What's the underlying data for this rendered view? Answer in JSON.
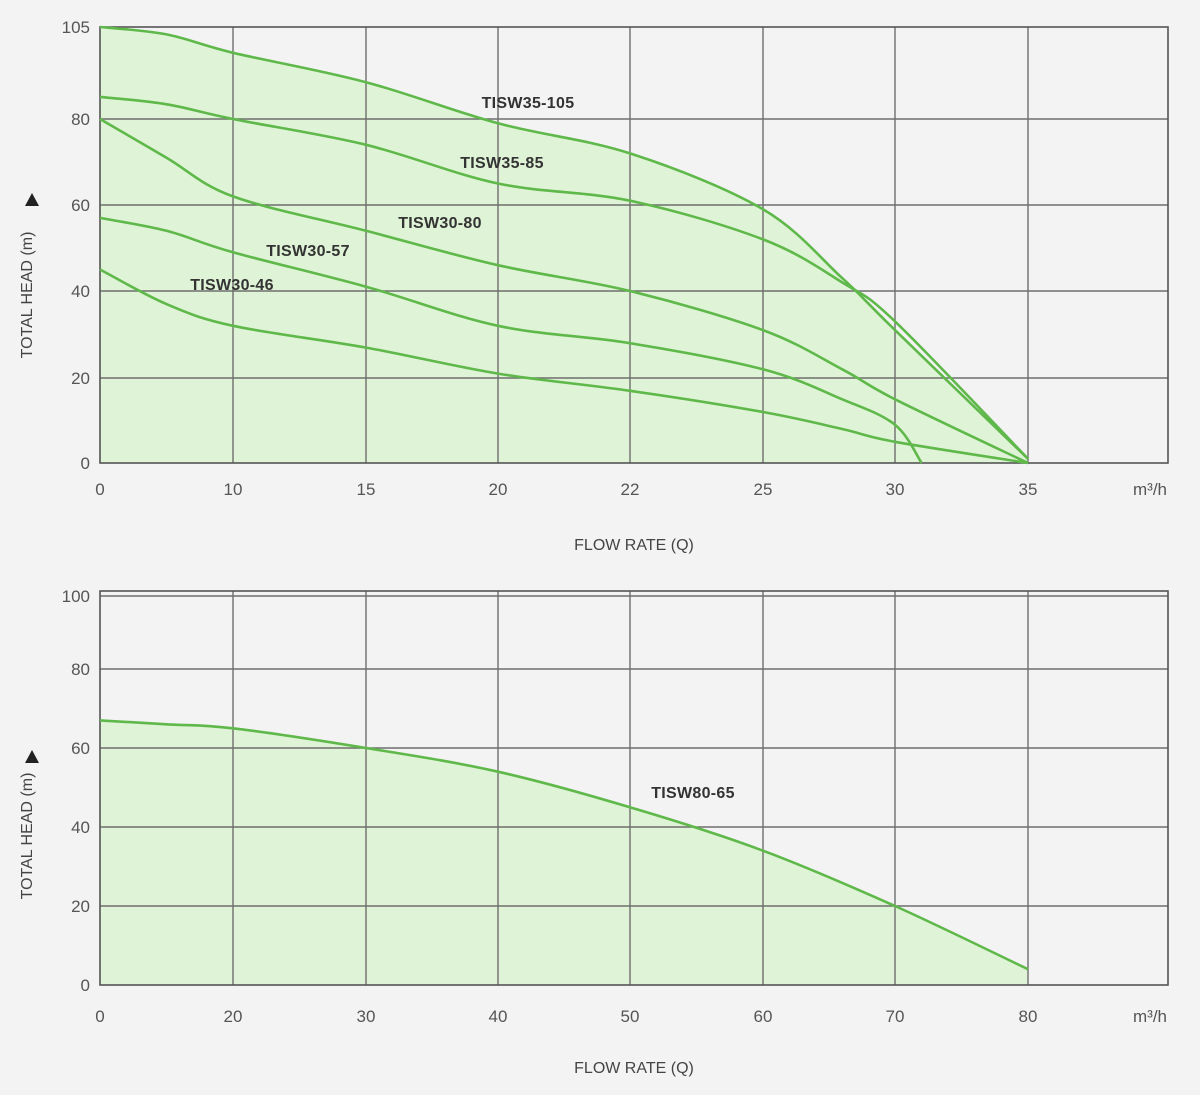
{
  "chart_data": [
    {
      "type": "line",
      "xlabel": "FLOW RATE (Q)",
      "ylabel": "TOTAL HEAD (m)",
      "x_unit": "m³/h",
      "grid": true,
      "x_ticks": [
        "0",
        "10",
        "15",
        "20",
        "22",
        "25",
        "30",
        "35"
      ],
      "y_ticks": [
        "0",
        "20",
        "40",
        "60",
        "80",
        "105"
      ],
      "xlim": [
        0,
        40
      ],
      "ylim": [
        0,
        105
      ],
      "series": [
        {
          "name": "TISW35-105",
          "points": [
            [
              0,
              105
            ],
            [
              5,
              103
            ],
            [
              10,
              98
            ],
            [
              15,
              90
            ],
            [
              20,
              79
            ],
            [
              22,
              72
            ],
            [
              25,
              59
            ],
            [
              28,
              43
            ],
            [
              30,
              31
            ],
            [
              35,
              1
            ]
          ]
        },
        {
          "name": "TISW35-85",
          "points": [
            [
              0,
              86
            ],
            [
              5,
              84
            ],
            [
              10,
              80
            ],
            [
              15,
              74
            ],
            [
              20,
              65
            ],
            [
              22,
              61
            ],
            [
              25,
              52
            ],
            [
              28,
              42
            ],
            [
              30,
              33
            ],
            [
              35,
              1
            ]
          ]
        },
        {
          "name": "TISW30-80",
          "points": [
            [
              0,
              80
            ],
            [
              5,
              71
            ],
            [
              10,
              62
            ],
            [
              15,
              54
            ],
            [
              20,
              46
            ],
            [
              22,
              40
            ],
            [
              25,
              31
            ],
            [
              28,
              22
            ],
            [
              30,
              15
            ],
            [
              35,
              0
            ]
          ]
        },
        {
          "name": "TISW30-57",
          "points": [
            [
              0,
              57
            ],
            [
              5,
              54
            ],
            [
              10,
              49
            ],
            [
              15,
              41
            ],
            [
              20,
              32
            ],
            [
              22,
              28
            ],
            [
              25,
              22
            ],
            [
              28,
              15
            ],
            [
              30,
              9
            ],
            [
              31,
              0
            ]
          ]
        },
        {
          "name": "TISW30-46",
          "points": [
            [
              0,
              45
            ],
            [
              5,
              37
            ],
            [
              10,
              32
            ],
            [
              15,
              27
            ],
            [
              20,
              21
            ],
            [
              22,
              17
            ],
            [
              25,
              12
            ],
            [
              28,
              8
            ],
            [
              30,
              5
            ],
            [
              35,
              0
            ]
          ]
        }
      ]
    },
    {
      "type": "line",
      "xlabel": "FLOW RATE (Q)",
      "ylabel": "TOTAL HEAD (m)",
      "x_unit": "m³/h",
      "grid": true,
      "x_ticks": [
        "0",
        "20",
        "30",
        "40",
        "50",
        "60",
        "70",
        "80"
      ],
      "y_ticks": [
        "0",
        "20",
        "40",
        "60",
        "80",
        "100"
      ],
      "xlim": [
        0,
        90
      ],
      "ylim": [
        0,
        100
      ],
      "series": [
        {
          "name": "TISW80-65",
          "points": [
            [
              0,
              67
            ],
            [
              10,
              66
            ],
            [
              20,
              65
            ],
            [
              30,
              60
            ],
            [
              40,
              54
            ],
            [
              50,
              45
            ],
            [
              60,
              34
            ],
            [
              70,
              20
            ],
            [
              80,
              4
            ]
          ]
        }
      ]
    }
  ]
}
